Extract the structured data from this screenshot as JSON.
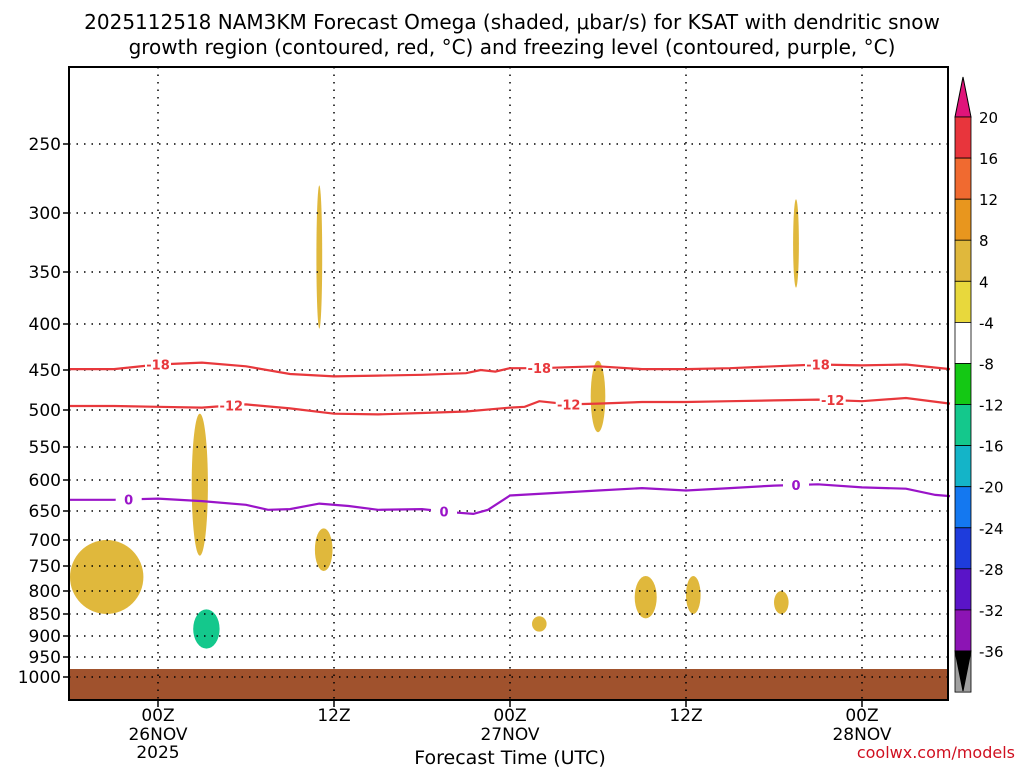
{
  "chart_data": {
    "type": "heatmap",
    "title": [
      "2025112518 NAM3KM Forecast Omega (shaded, μbar/s) for KSAT with dendritic snow",
      "growth region (contoured, red, °C) and freezing level (contoured, purple, °C)"
    ],
    "xlabel": "Forecast Time (UTC)",
    "ylabel": "",
    "xlim": [
      -6,
      54
    ],
    "ylim": [
      1030,
      200
    ],
    "x_ticks": [
      {
        "x": 0,
        "label": "00Z",
        "sub": [
          "26NOV",
          "2025"
        ]
      },
      {
        "x": 12,
        "label": "12Z",
        "sub": []
      },
      {
        "x": 24,
        "label": "00Z",
        "sub": [
          "27NOV"
        ]
      },
      {
        "x": 36,
        "label": "12Z",
        "sub": []
      },
      {
        "x": 48,
        "label": "00Z",
        "sub": [
          "28NOV"
        ]
      }
    ],
    "y_ticks": [
      250,
      300,
      350,
      400,
      450,
      500,
      550,
      600,
      650,
      700,
      750,
      800,
      850,
      900,
      950,
      1000
    ],
    "grid": true,
    "colorbar": {
      "levels": [
        20,
        16,
        12,
        8,
        4,
        -4,
        -8,
        -12,
        -16,
        -20,
        -24,
        -28,
        -32,
        -36
      ],
      "colors": [
        "#e8353c",
        "#f06a30",
        "#e8961e",
        "#e0b83c",
        "#e8d83c",
        "#ffffff",
        "#14c814",
        "#14c88c",
        "#14b4c8",
        "#1478f0",
        "#1e3cdc",
        "#5a14c8",
        "#8c14b4",
        "#a0a0a0"
      ],
      "top_extend_color": "#e0147a",
      "bottom_extend_color": "#000000"
    },
    "series": [
      {
        "name": "dendritic growth -18C",
        "color": "#e8383c",
        "label": "-18",
        "points": [
          [
            -6,
            449
          ],
          [
            -3,
            449
          ],
          [
            0,
            444
          ],
          [
            3,
            442
          ],
          [
            6,
            446
          ],
          [
            9,
            455
          ],
          [
            12,
            458
          ],
          [
            15,
            457
          ],
          [
            18,
            456
          ],
          [
            21,
            454
          ],
          [
            22,
            450
          ],
          [
            23,
            452
          ],
          [
            24,
            448
          ],
          [
            26,
            448
          ],
          [
            28,
            447
          ],
          [
            30,
            446
          ],
          [
            33,
            449
          ],
          [
            36,
            449
          ],
          [
            39,
            448
          ],
          [
            42,
            446
          ],
          [
            45,
            444
          ],
          [
            48,
            445
          ],
          [
            51,
            444
          ],
          [
            54,
            449
          ]
        ],
        "label_x": [
          0,
          26,
          45
        ]
      },
      {
        "name": "dendritic growth -12C",
        "color": "#e8383c",
        "label": "-12",
        "points": [
          [
            -6,
            495
          ],
          [
            -3,
            495
          ],
          [
            0,
            496
          ],
          [
            3,
            497
          ],
          [
            6,
            493
          ],
          [
            9,
            498
          ],
          [
            12,
            505
          ],
          [
            15,
            506
          ],
          [
            18,
            504
          ],
          [
            21,
            502
          ],
          [
            24,
            497
          ],
          [
            25,
            496
          ],
          [
            26,
            489
          ],
          [
            28,
            493
          ],
          [
            30,
            492
          ],
          [
            33,
            490
          ],
          [
            36,
            490
          ],
          [
            39,
            489
          ],
          [
            42,
            488
          ],
          [
            45,
            487
          ],
          [
            48,
            489
          ],
          [
            51,
            485
          ],
          [
            54,
            492
          ]
        ],
        "label_x": [
          5,
          28,
          46
        ]
      },
      {
        "name": "freezing level 0C",
        "color": "#9a14c8",
        "label": "0",
        "points": [
          [
            -6,
            632
          ],
          [
            -3,
            632
          ],
          [
            0,
            630
          ],
          [
            3,
            634
          ],
          [
            6,
            640
          ],
          [
            7.5,
            648
          ],
          [
            9,
            647
          ],
          [
            11,
            638
          ],
          [
            13,
            642
          ],
          [
            15,
            648
          ],
          [
            18,
            647
          ],
          [
            20,
            652
          ],
          [
            21.5,
            655
          ],
          [
            22.5,
            648
          ],
          [
            24,
            625
          ],
          [
            27,
            621
          ],
          [
            30,
            617
          ],
          [
            33,
            613
          ],
          [
            36,
            617
          ],
          [
            39,
            613
          ],
          [
            42,
            609
          ],
          [
            45,
            607
          ],
          [
            48,
            612
          ],
          [
            51,
            614
          ],
          [
            53,
            624
          ],
          [
            54,
            626
          ]
        ],
        "label_x": [
          -2,
          19.5,
          43.5
        ]
      }
    ],
    "shaded_regions": [
      {
        "value": 6,
        "x": [
          -6,
          -1
        ],
        "p": [
          700,
          850
        ]
      },
      {
        "value": -6,
        "x": [
          5.5,
          6.3
        ],
        "p": [
          295,
          405
        ]
      },
      {
        "value": 6,
        "x": [
          10.8,
          11.2
        ],
        "p": [
          280,
          405
        ]
      },
      {
        "value": -6,
        "x": [
          7.5,
          10.5
        ],
        "p": [
          375,
          590
        ]
      },
      {
        "value": 6,
        "x": [
          2.3,
          3.4
        ],
        "p": [
          505,
          730
        ]
      },
      {
        "value": 6,
        "x": [
          10.7,
          11.9
        ],
        "p": [
          680,
          760
        ]
      },
      {
        "value": -6,
        "x": [
          -1.5,
          9.5
        ],
        "p": [
          770,
          940
        ]
      },
      {
        "value": -14,
        "x": [
          2.4,
          4.2
        ],
        "p": [
          840,
          930
        ]
      },
      {
        "value": 6,
        "x": [
          29.5,
          30.5
        ],
        "p": [
          440,
          530
        ]
      },
      {
        "value": 6,
        "x": [
          25.5,
          26.5
        ],
        "p": [
          855,
          890
        ]
      },
      {
        "value": 6,
        "x": [
          32.5,
          34
        ],
        "p": [
          770,
          860
        ]
      },
      {
        "value": 6,
        "x": [
          36,
          37
        ],
        "p": [
          770,
          850
        ]
      },
      {
        "value": 6,
        "x": [
          42,
          43
        ],
        "p": [
          800,
          850
        ]
      },
      {
        "value": 6,
        "x": [
          43.3,
          43.7
        ],
        "p": [
          290,
          365
        ]
      },
      {
        "value": -6,
        "x": [
          40.3,
          40.8
        ],
        "p": [
          760,
          790
        ]
      },
      {
        "value": -6,
        "x": [
          52.9,
          53.2
        ],
        "p": [
          770,
          800
        ]
      },
      {
        "value": -6,
        "x": [
          49.5,
          54
        ],
        "p": [
          930,
          975
        ]
      }
    ],
    "surface": {
      "color": "#a0522d",
      "p_top": 980
    }
  },
  "credit": "coolwx.com/models"
}
